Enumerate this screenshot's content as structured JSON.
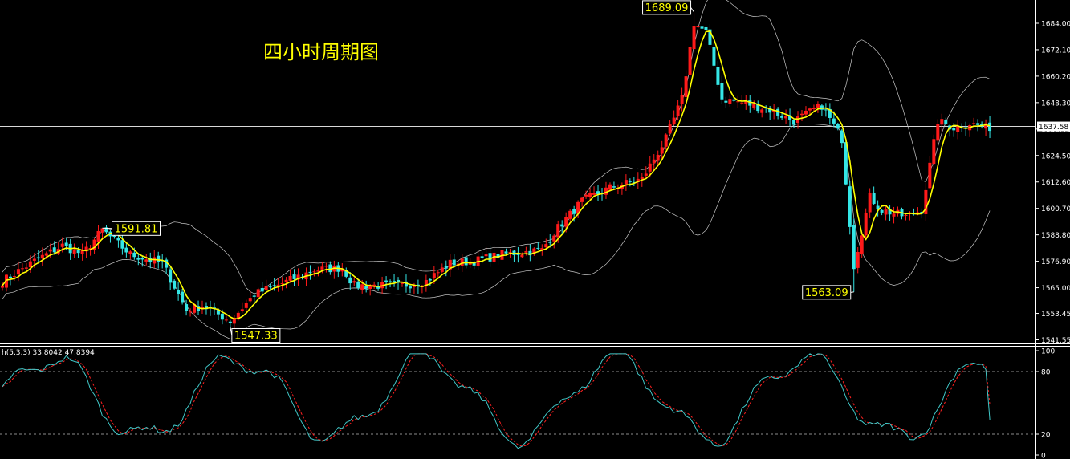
{
  "chart_title": "四小时周期图",
  "colors": {
    "background": "#000000",
    "up": "#ff1a1a",
    "down": "#34e6e6",
    "ma": "#ffff00",
    "bands": "#c8c8c8",
    "k_line": "#40c8c8",
    "d_line": "#ff2020",
    "text": "#ffffff",
    "annotation_text": "#ffff00"
  },
  "chart_data": [
    {
      "type": "candlestick",
      "ylim": [
        1541.55,
        1689.09
      ],
      "y_ticks": [
        "1684.00",
        "1672.10",
        "1660.20",
        "1648.30",
        "1636.40",
        "1624.50",
        "1612.60",
        "1600.70",
        "1588.80",
        "1576.90",
        "1565.00",
        "1553.45",
        "1541.55"
      ],
      "current_price": "1637.58",
      "current_price_value": 1637.58,
      "annotations": [
        {
          "label": "1591.81",
          "value": 1591.81,
          "index": 25
        },
        {
          "label": "1547.33",
          "value": 1547.33,
          "index": 57
        },
        {
          "label": "1689.09",
          "value": 1689.09,
          "index": 173
        },
        {
          "label": "1563.09",
          "value": 1563.09,
          "index": 213
        }
      ],
      "anchors": [
        [
          0,
          1568
        ],
        [
          8,
          1577
        ],
        [
          15,
          1584
        ],
        [
          20,
          1580
        ],
        [
          25,
          1591
        ],
        [
          32,
          1580
        ],
        [
          40,
          1576
        ],
        [
          46,
          1555
        ],
        [
          50,
          1557
        ],
        [
          57,
          1550
        ],
        [
          63,
          1562
        ],
        [
          70,
          1567
        ],
        [
          78,
          1573
        ],
        [
          85,
          1574
        ],
        [
          88,
          1566
        ],
        [
          95,
          1566
        ],
        [
          100,
          1566
        ],
        [
          106,
          1568
        ],
        [
          112,
          1576
        ],
        [
          118,
          1577
        ],
        [
          125,
          1580
        ],
        [
          135,
          1582
        ],
        [
          138,
          1590
        ],
        [
          145,
          1604
        ],
        [
          152,
          1610
        ],
        [
          160,
          1614
        ],
        [
          166,
          1632
        ],
        [
          170,
          1650
        ],
        [
          173,
          1684
        ],
        [
          176,
          1680
        ],
        [
          180,
          1650
        ],
        [
          186,
          1648
        ],
        [
          192,
          1645
        ],
        [
          198,
          1640
        ],
        [
          205,
          1647
        ],
        [
          210,
          1632
        ],
        [
          213,
          1575
        ],
        [
          217,
          1606
        ],
        [
          220,
          1600
        ],
        [
          226,
          1597
        ],
        [
          230,
          1600
        ],
        [
          234,
          1640
        ],
        [
          238,
          1637
        ],
        [
          242,
          1639
        ],
        [
          246,
          1637
        ]
      ]
    },
    {
      "type": "line",
      "indicator": "h(5,3,3)",
      "values_text": "h(5,3,3) 33.8042 47.8394",
      "k_value": 33.8042,
      "d_value": 47.8394,
      "ylim": [
        0,
        100
      ],
      "y_ticks": [
        "100",
        "80",
        "20",
        "0"
      ],
      "levels": [
        80,
        20
      ]
    }
  ]
}
